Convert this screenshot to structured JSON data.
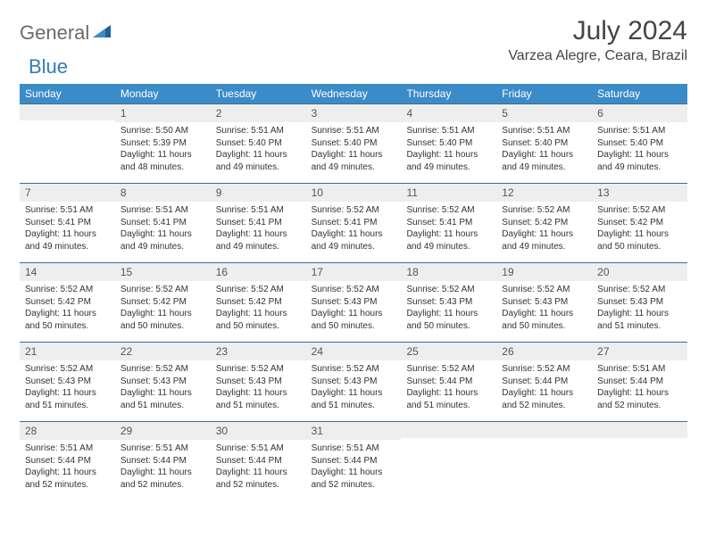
{
  "logo": {
    "text1": "General",
    "text2": "Blue"
  },
  "header": {
    "month_title": "July 2024",
    "location": "Varzea Alegre, Ceara, Brazil"
  },
  "colors": {
    "header_bg": "#3b8bc8",
    "header_text": "#ffffff",
    "daynum_bg": "#eeeeee",
    "rule": "#3b6f95",
    "logo_gray": "#6b6b6b",
    "logo_blue": "#2f7bbf"
  },
  "weekdays": [
    "Sunday",
    "Monday",
    "Tuesday",
    "Wednesday",
    "Thursday",
    "Friday",
    "Saturday"
  ],
  "weeks": [
    [
      null,
      {
        "n": "1",
        "sunrise": "5:50 AM",
        "sunset": "5:39 PM",
        "daylight": "11 hours and 48 minutes."
      },
      {
        "n": "2",
        "sunrise": "5:51 AM",
        "sunset": "5:40 PM",
        "daylight": "11 hours and 49 minutes."
      },
      {
        "n": "3",
        "sunrise": "5:51 AM",
        "sunset": "5:40 PM",
        "daylight": "11 hours and 49 minutes."
      },
      {
        "n": "4",
        "sunrise": "5:51 AM",
        "sunset": "5:40 PM",
        "daylight": "11 hours and 49 minutes."
      },
      {
        "n": "5",
        "sunrise": "5:51 AM",
        "sunset": "5:40 PM",
        "daylight": "11 hours and 49 minutes."
      },
      {
        "n": "6",
        "sunrise": "5:51 AM",
        "sunset": "5:40 PM",
        "daylight": "11 hours and 49 minutes."
      }
    ],
    [
      {
        "n": "7",
        "sunrise": "5:51 AM",
        "sunset": "5:41 PM",
        "daylight": "11 hours and 49 minutes."
      },
      {
        "n": "8",
        "sunrise": "5:51 AM",
        "sunset": "5:41 PM",
        "daylight": "11 hours and 49 minutes."
      },
      {
        "n": "9",
        "sunrise": "5:51 AM",
        "sunset": "5:41 PM",
        "daylight": "11 hours and 49 minutes."
      },
      {
        "n": "10",
        "sunrise": "5:52 AM",
        "sunset": "5:41 PM",
        "daylight": "11 hours and 49 minutes."
      },
      {
        "n": "11",
        "sunrise": "5:52 AM",
        "sunset": "5:41 PM",
        "daylight": "11 hours and 49 minutes."
      },
      {
        "n": "12",
        "sunrise": "5:52 AM",
        "sunset": "5:42 PM",
        "daylight": "11 hours and 49 minutes."
      },
      {
        "n": "13",
        "sunrise": "5:52 AM",
        "sunset": "5:42 PM",
        "daylight": "11 hours and 50 minutes."
      }
    ],
    [
      {
        "n": "14",
        "sunrise": "5:52 AM",
        "sunset": "5:42 PM",
        "daylight": "11 hours and 50 minutes."
      },
      {
        "n": "15",
        "sunrise": "5:52 AM",
        "sunset": "5:42 PM",
        "daylight": "11 hours and 50 minutes."
      },
      {
        "n": "16",
        "sunrise": "5:52 AM",
        "sunset": "5:42 PM",
        "daylight": "11 hours and 50 minutes."
      },
      {
        "n": "17",
        "sunrise": "5:52 AM",
        "sunset": "5:43 PM",
        "daylight": "11 hours and 50 minutes."
      },
      {
        "n": "18",
        "sunrise": "5:52 AM",
        "sunset": "5:43 PM",
        "daylight": "11 hours and 50 minutes."
      },
      {
        "n": "19",
        "sunrise": "5:52 AM",
        "sunset": "5:43 PM",
        "daylight": "11 hours and 50 minutes."
      },
      {
        "n": "20",
        "sunrise": "5:52 AM",
        "sunset": "5:43 PM",
        "daylight": "11 hours and 51 minutes."
      }
    ],
    [
      {
        "n": "21",
        "sunrise": "5:52 AM",
        "sunset": "5:43 PM",
        "daylight": "11 hours and 51 minutes."
      },
      {
        "n": "22",
        "sunrise": "5:52 AM",
        "sunset": "5:43 PM",
        "daylight": "11 hours and 51 minutes."
      },
      {
        "n": "23",
        "sunrise": "5:52 AM",
        "sunset": "5:43 PM",
        "daylight": "11 hours and 51 minutes."
      },
      {
        "n": "24",
        "sunrise": "5:52 AM",
        "sunset": "5:43 PM",
        "daylight": "11 hours and 51 minutes."
      },
      {
        "n": "25",
        "sunrise": "5:52 AM",
        "sunset": "5:44 PM",
        "daylight": "11 hours and 51 minutes."
      },
      {
        "n": "26",
        "sunrise": "5:52 AM",
        "sunset": "5:44 PM",
        "daylight": "11 hours and 52 minutes."
      },
      {
        "n": "27",
        "sunrise": "5:51 AM",
        "sunset": "5:44 PM",
        "daylight": "11 hours and 52 minutes."
      }
    ],
    [
      {
        "n": "28",
        "sunrise": "5:51 AM",
        "sunset": "5:44 PM",
        "daylight": "11 hours and 52 minutes."
      },
      {
        "n": "29",
        "sunrise": "5:51 AM",
        "sunset": "5:44 PM",
        "daylight": "11 hours and 52 minutes."
      },
      {
        "n": "30",
        "sunrise": "5:51 AM",
        "sunset": "5:44 PM",
        "daylight": "11 hours and 52 minutes."
      },
      {
        "n": "31",
        "sunrise": "5:51 AM",
        "sunset": "5:44 PM",
        "daylight": "11 hours and 52 minutes."
      },
      null,
      null,
      null
    ]
  ],
  "labels": {
    "sunrise": "Sunrise: ",
    "sunset": "Sunset: ",
    "daylight": "Daylight: "
  }
}
